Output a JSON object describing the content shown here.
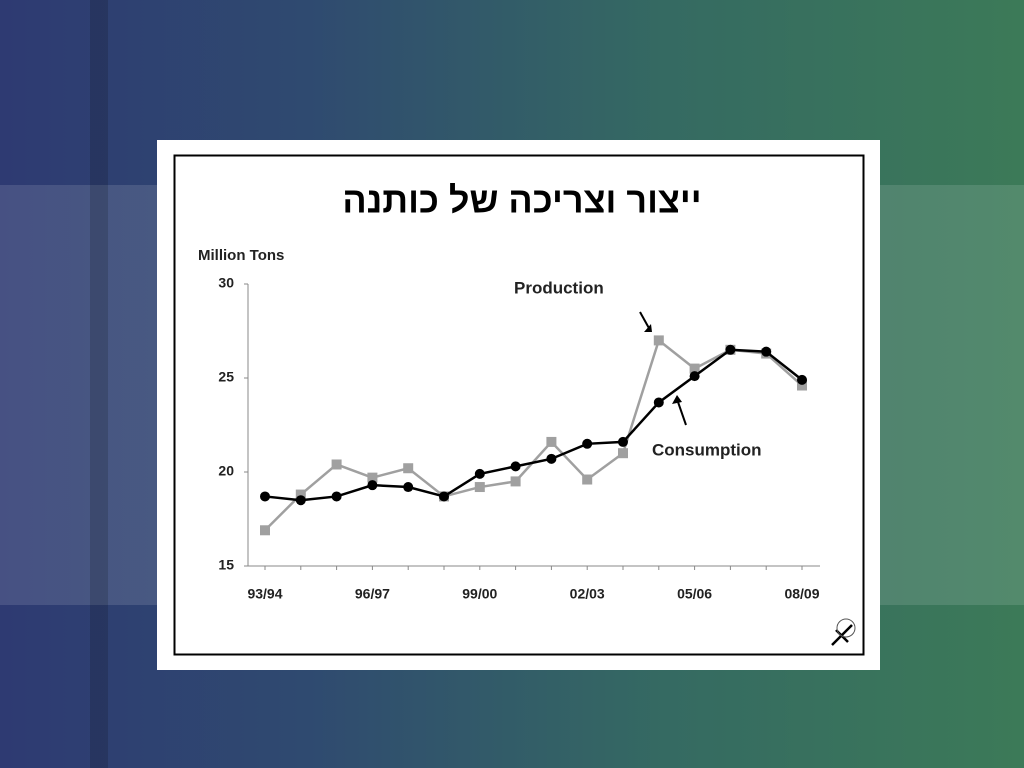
{
  "chart_data": {
    "type": "line",
    "title": "ייצור וצריכה של כותנה",
    "y_label": "Million Tons",
    "categories": [
      "93/94",
      null,
      null,
      "96/97",
      null,
      null,
      "99/00",
      null,
      null,
      "02/03",
      null,
      null,
      "05/06",
      null,
      null,
      "08/09"
    ],
    "series": [
      {
        "name": "Production",
        "color": "#a0a0a0",
        "values": [
          16.9,
          18.8,
          20.4,
          19.7,
          20.2,
          18.7,
          19.2,
          19.5,
          21.6,
          19.6,
          21.0,
          27.0,
          25.5,
          26.5,
          26.3,
          24.6
        ]
      },
      {
        "name": "Consumption",
        "color": "#000000",
        "values": [
          18.7,
          18.5,
          18.7,
          19.3,
          19.2,
          18.7,
          19.9,
          20.3,
          20.7,
          21.5,
          21.6,
          23.7,
          25.1,
          26.5,
          26.4,
          24.9
        ]
      }
    ],
    "ylim": [
      15,
      30
    ],
    "yticks": [
      15,
      20,
      25,
      30
    ],
    "grid": false
  }
}
